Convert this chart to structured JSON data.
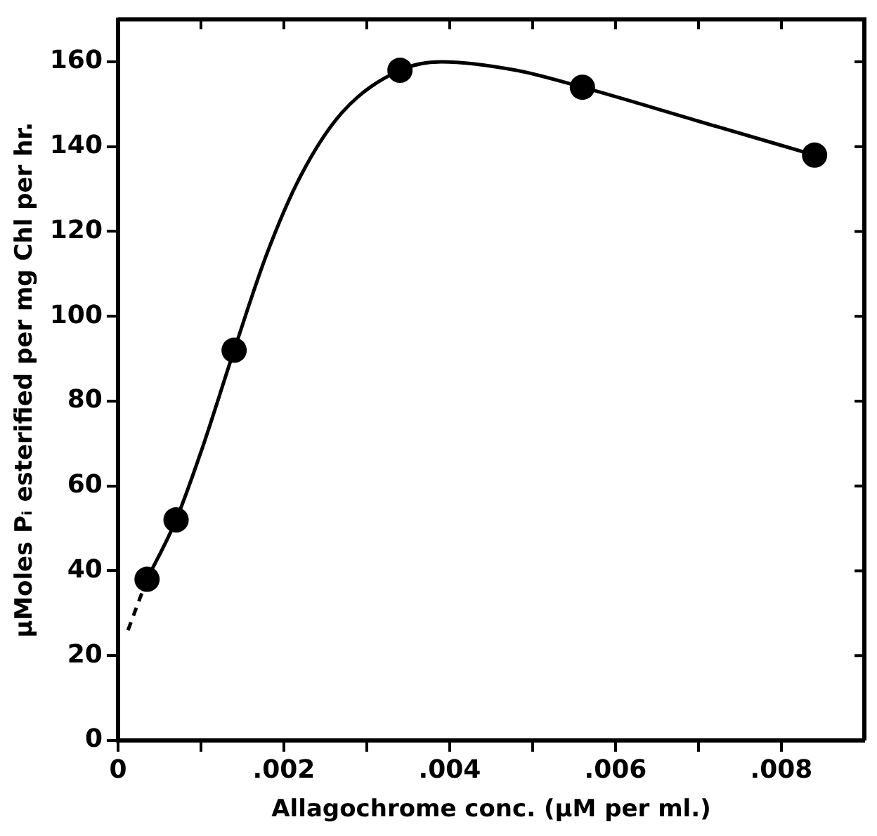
{
  "chart_data": {
    "type": "scatter",
    "xlabel": "Allagochrome conc. (μM per ml.)",
    "ylabel": "μMoles Pᵢ esterified per mg Chl per hr.",
    "xlim": [
      0,
      0.009
    ],
    "ylim": [
      0,
      170
    ],
    "xticks": [
      {
        "value": 0,
        "label": "0"
      },
      {
        "value": 0.001,
        "label": null
      },
      {
        "value": 0.002,
        "label": ".002"
      },
      {
        "value": 0.003,
        "label": null
      },
      {
        "value": 0.004,
        "label": ".004"
      },
      {
        "value": 0.005,
        "label": null
      },
      {
        "value": 0.006,
        "label": ".006"
      },
      {
        "value": 0.007,
        "label": null
      },
      {
        "value": 0.008,
        "label": ".008"
      }
    ],
    "yticks": [
      0,
      20,
      40,
      60,
      80,
      100,
      120,
      140,
      160
    ],
    "grid": false,
    "legend": false,
    "series": [
      {
        "type": "line",
        "color": "#000000",
        "marker": "none",
        "line_style": "dashed",
        "x": [
          0.00012,
          0.00035
        ],
        "values": [
          26,
          38
        ]
      },
      {
        "type": "line",
        "color": "#000000",
        "marker": "none",
        "line_style": "solid",
        "x": [
          0.00035,
          0.0007,
          0.001,
          0.0014,
          0.0018,
          0.0022,
          0.0027,
          0.0034,
          0.0039,
          0.0048,
          0.0056,
          0.007,
          0.0084
        ],
        "values": [
          38,
          52,
          68,
          92,
          115,
          133,
          148,
          158,
          160,
          158,
          154,
          146,
          138
        ]
      },
      {
        "type": "scatter",
        "color": "#000000",
        "marker": "circle",
        "x": [
          0.00035,
          0.0007,
          0.0014,
          0.0034,
          0.0056,
          0.0084
        ],
        "values": [
          38,
          52,
          92,
          158,
          154,
          138
        ]
      }
    ]
  }
}
